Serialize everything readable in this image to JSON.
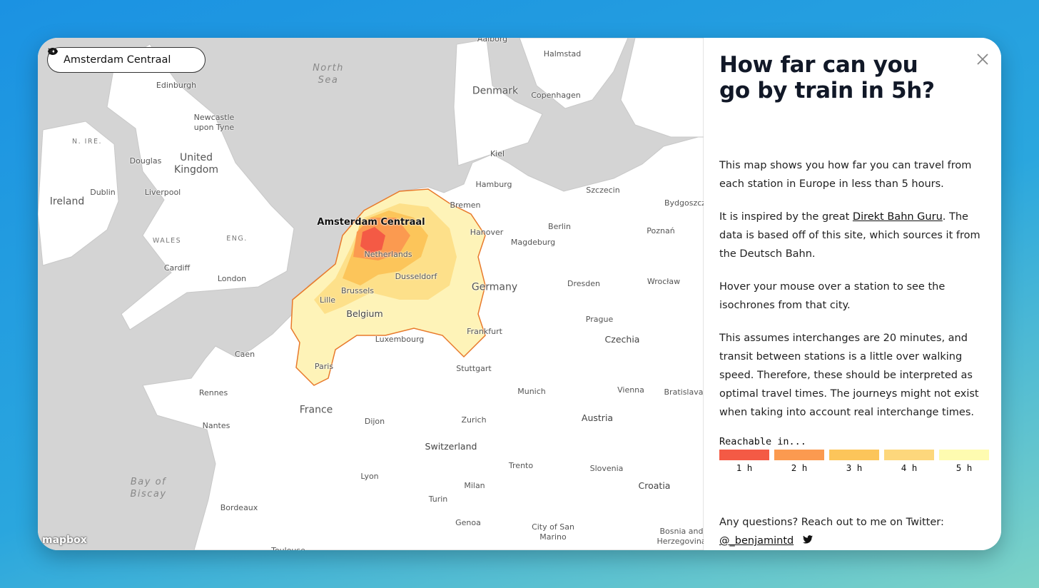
{
  "search": {
    "label": "Amsterdam Centraal"
  },
  "map": {
    "attribution": "mapbox",
    "labels": [
      {
        "text": "Aalborg",
        "kind": "city"
      },
      {
        "text": "Halmstad",
        "kind": "city"
      },
      {
        "text": "North Sea",
        "kind": "sea"
      },
      {
        "text": "Edinburgh",
        "kind": "city"
      },
      {
        "text": "Denmark",
        "kind": "country"
      },
      {
        "text": "Copenhagen",
        "kind": "city"
      },
      {
        "text": "Newcastle upon Tyne",
        "kind": "city"
      },
      {
        "text": "N. IRE.",
        "kind": "region"
      },
      {
        "text": "United Kingdom",
        "kind": "country"
      },
      {
        "text": "Douglas",
        "kind": "city"
      },
      {
        "text": "Kiel",
        "kind": "city"
      },
      {
        "text": "Dublin",
        "kind": "city"
      },
      {
        "text": "Liverpool",
        "kind": "city"
      },
      {
        "text": "Hamburg",
        "kind": "city"
      },
      {
        "text": "Szczecin",
        "kind": "city"
      },
      {
        "text": "Ireland",
        "kind": "country"
      },
      {
        "text": "Bremen",
        "kind": "city"
      },
      {
        "text": "Bydgoszcz",
        "kind": "city"
      },
      {
        "text": "Amsterdam Centraal",
        "kind": "station"
      },
      {
        "text": "Berlin",
        "kind": "city"
      },
      {
        "text": "Hanover",
        "kind": "city"
      },
      {
        "text": "Poznań",
        "kind": "city"
      },
      {
        "text": "ENG.",
        "kind": "region"
      },
      {
        "text": "WALES",
        "kind": "region"
      },
      {
        "text": "Magdeburg",
        "kind": "city"
      },
      {
        "text": "Netherlands",
        "kind": "city"
      },
      {
        "text": "Cardiff",
        "kind": "city"
      },
      {
        "text": "Dusseldorf",
        "kind": "city"
      },
      {
        "text": "London",
        "kind": "city"
      },
      {
        "text": "Wrocław",
        "kind": "city"
      },
      {
        "text": "Dresden",
        "kind": "city"
      },
      {
        "text": "Germany",
        "kind": "country"
      },
      {
        "text": "Brussels",
        "kind": "city"
      },
      {
        "text": "Lille",
        "kind": "city"
      },
      {
        "text": "Belgium",
        "kind": "country-small"
      },
      {
        "text": "Prague",
        "kind": "city"
      },
      {
        "text": "Frankfurt",
        "kind": "city"
      },
      {
        "text": "Luxembourg",
        "kind": "city"
      },
      {
        "text": "Czechia",
        "kind": "country-small"
      },
      {
        "text": "Caen",
        "kind": "city"
      },
      {
        "text": "Paris",
        "kind": "city"
      },
      {
        "text": "Stuttgart",
        "kind": "city"
      },
      {
        "text": "Rennes",
        "kind": "city"
      },
      {
        "text": "Munich",
        "kind": "city"
      },
      {
        "text": "Vienna",
        "kind": "city"
      },
      {
        "text": "Bratislava",
        "kind": "city"
      },
      {
        "text": "France",
        "kind": "country"
      },
      {
        "text": "Austria",
        "kind": "country-small"
      },
      {
        "text": "Zurich",
        "kind": "city"
      },
      {
        "text": "Dijon",
        "kind": "city"
      },
      {
        "text": "Nantes",
        "kind": "city"
      },
      {
        "text": "Switzerland",
        "kind": "country-small"
      },
      {
        "text": "Trento",
        "kind": "city"
      },
      {
        "text": "Slovenia",
        "kind": "city"
      },
      {
        "text": "Lyon",
        "kind": "city"
      },
      {
        "text": "Bay of Biscay",
        "kind": "sea"
      },
      {
        "text": "Milan",
        "kind": "city"
      },
      {
        "text": "Croatia",
        "kind": "country-small"
      },
      {
        "text": "Turin",
        "kind": "city"
      },
      {
        "text": "Bordeaux",
        "kind": "city"
      },
      {
        "text": "Genoa",
        "kind": "city"
      },
      {
        "text": "City of San Marino",
        "kind": "city"
      },
      {
        "text": "Bosnia and Herzegovina",
        "kind": "city"
      },
      {
        "text": "Toulouse",
        "kind": "city"
      }
    ]
  },
  "panel": {
    "title": "How far can you go by train in 5h?",
    "paragraphs": [
      "This map shows you how far you can travel from each station in Europe in less than 5 hours.",
      {
        "before": "It is inspired by the great ",
        "link": "Direkt Bahn Guru",
        "after": ". The data is based off of this site, which sources it from the Deutsch Bahn."
      },
      "Hover your mouse over a station to see the isochrones from that city.",
      "This assumes interchanges are 20 minutes, and transit between stations is a little over walking speed. Therefore, these should be interpreted as optimal travel times. The journeys might not exist when taking into account real interchange times."
    ],
    "legend": {
      "title": "Reachable in...",
      "items": [
        {
          "label": "1 h",
          "color": "#f45a45"
        },
        {
          "label": "2 h",
          "color": "#fb9a50"
        },
        {
          "label": "3 h",
          "color": "#fcc55a"
        },
        {
          "label": "4 h",
          "color": "#fdd77c"
        },
        {
          "label": "5 h",
          "color": "#fefbb0"
        }
      ]
    },
    "contact": {
      "text": "Any questions? Reach out to me on Twitter:",
      "handle": "@_benjamintd"
    }
  }
}
